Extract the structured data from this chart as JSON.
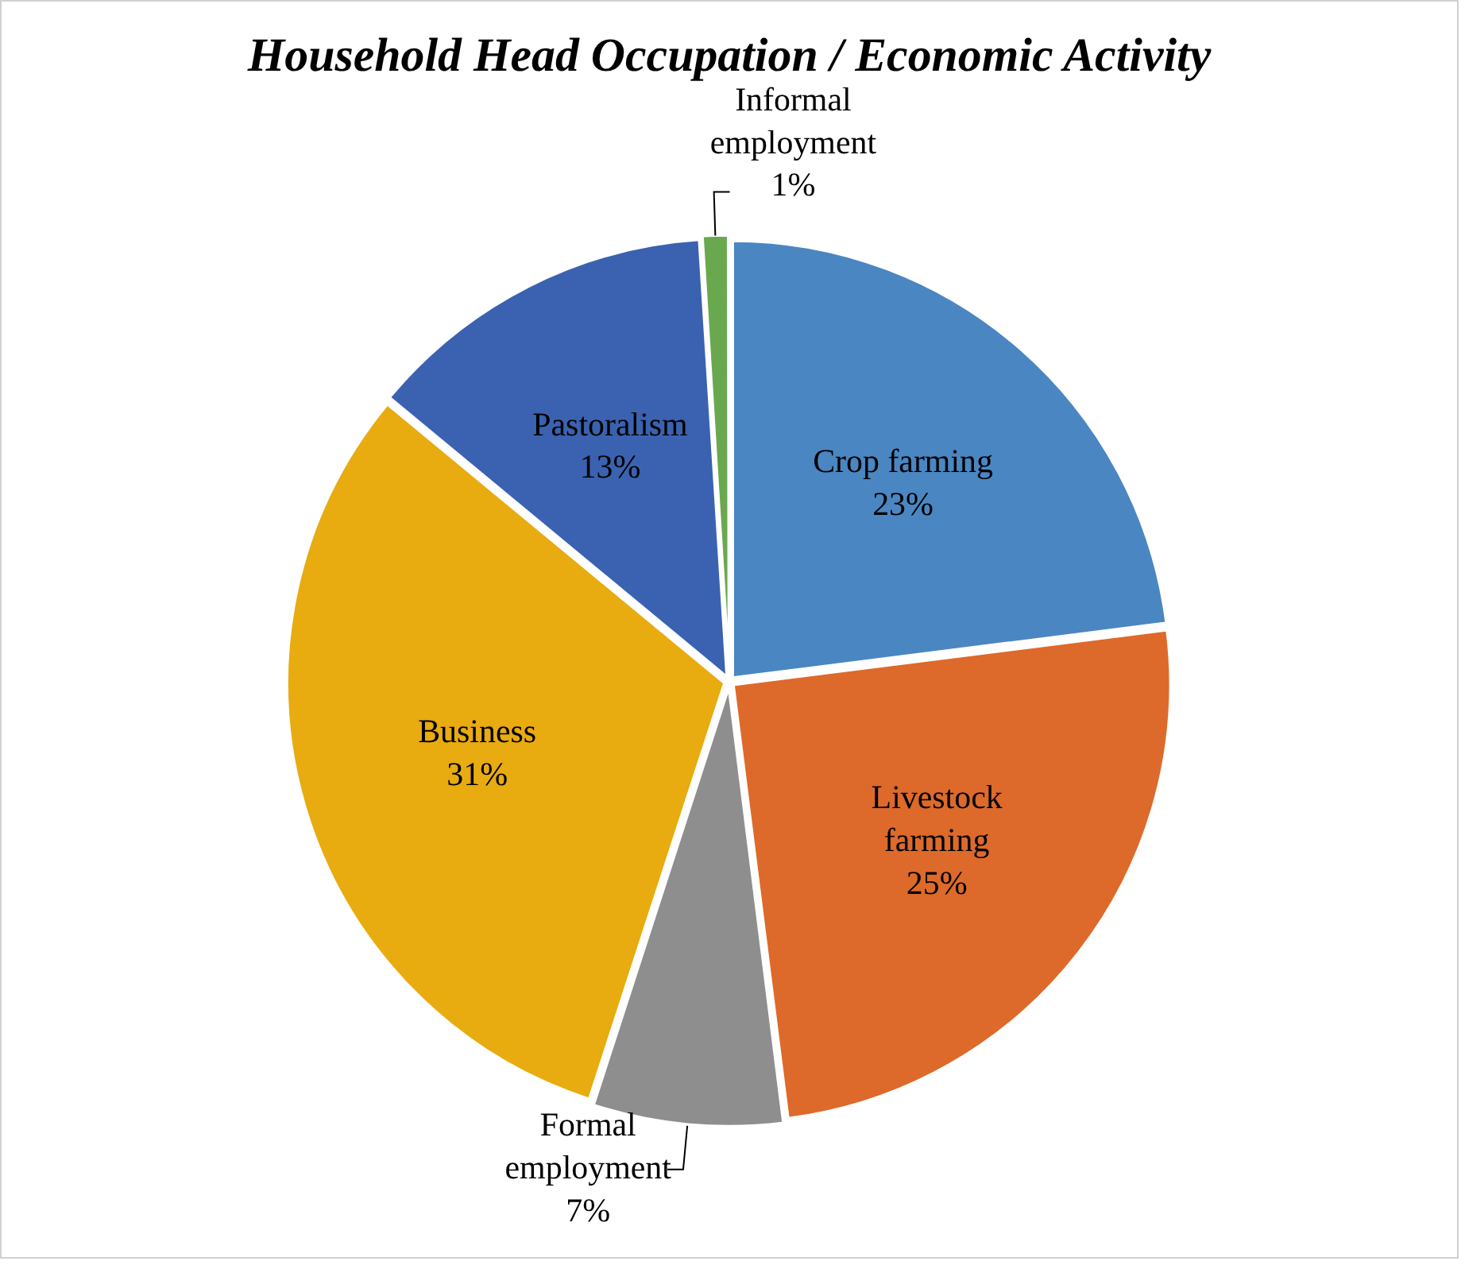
{
  "chart_data": {
    "type": "pie",
    "title": "Household Head Occupation / Economic Activity",
    "categories": [
      "Crop farming",
      "Livestock farming",
      "Formal employment",
      "Business",
      "Pastoralism",
      "Informal employment"
    ],
    "values": [
      23,
      25,
      7,
      31,
      13,
      1
    ],
    "value_labels": [
      "23%",
      "25%",
      "7%",
      "31%",
      "13%",
      "1%"
    ],
    "colors": [
      "#4a86c2",
      "#dd6a2a",
      "#8e8e8e",
      "#e8ab10",
      "#3a62b0",
      "#6aa84f"
    ],
    "legend": false
  }
}
